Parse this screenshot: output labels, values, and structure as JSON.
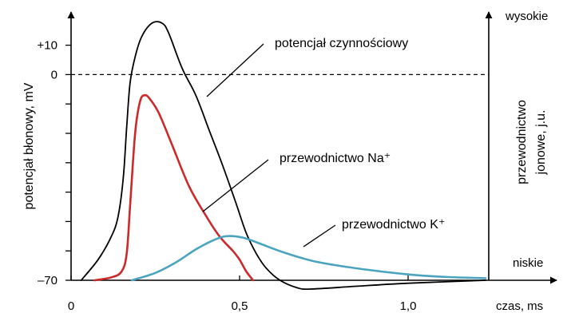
{
  "chart_data": {
    "type": "line",
    "xlabel": "czas, ms",
    "ylabel_left": "potencjał błonowy, mV",
    "ylabel_right": [
      "przewodnictwo",
      "jonowe, j.u."
    ],
    "right_top_label": "wysokie",
    "right_bottom_label": "niskie",
    "xlim": [
      0,
      1.23
    ],
    "ylim": [
      -70,
      18
    ],
    "x_ticks": [
      {
        "value": 0,
        "label": "0"
      },
      {
        "value": 0.5,
        "label": "0,5"
      },
      {
        "value": 1.0,
        "label": "1,0"
      }
    ],
    "y_ticks": [
      {
        "value": 10,
        "label": "+10"
      },
      {
        "value": 0,
        "label": "0"
      },
      {
        "value": -70,
        "label": "–70"
      }
    ],
    "y_minor_ticks": [
      -10,
      -20,
      -30,
      -40,
      -50,
      -60
    ],
    "reference_line": {
      "y": 0,
      "style": "dashed"
    },
    "series": [
      {
        "name": "potencjał czynnościowy",
        "color": "#000000",
        "points": [
          [
            0.03,
            -70
          ],
          [
            0.08,
            -63
          ],
          [
            0.12,
            -55
          ],
          [
            0.14,
            -48
          ],
          [
            0.155,
            -35
          ],
          [
            0.165,
            -18
          ],
          [
            0.175,
            -3
          ],
          [
            0.19,
            6
          ],
          [
            0.21,
            13
          ],
          [
            0.24,
            17.5
          ],
          [
            0.27,
            17.5
          ],
          [
            0.29,
            14
          ],
          [
            0.33,
            2
          ],
          [
            0.37,
            -7
          ],
          [
            0.41,
            -19
          ],
          [
            0.45,
            -31
          ],
          [
            0.49,
            -44
          ],
          [
            0.52,
            -54
          ],
          [
            0.55,
            -61
          ],
          [
            0.58,
            -66
          ],
          [
            0.62,
            -70
          ],
          [
            0.67,
            -72.5
          ],
          [
            0.71,
            -73
          ],
          [
            0.85,
            -72
          ],
          [
            1.0,
            -71
          ],
          [
            1.23,
            -70
          ]
        ]
      },
      {
        "name": "przewodnictwo Na⁺",
        "color": "#cc2a2a",
        "points": [
          [
            0.07,
            -70
          ],
          [
            0.12,
            -69
          ],
          [
            0.15,
            -67
          ],
          [
            0.165,
            -61
          ],
          [
            0.175,
            -45
          ],
          [
            0.19,
            -20
          ],
          [
            0.205,
            -9
          ],
          [
            0.22,
            -7
          ],
          [
            0.235,
            -8.5
          ],
          [
            0.26,
            -13
          ],
          [
            0.3,
            -24
          ],
          [
            0.35,
            -38
          ],
          [
            0.4,
            -48
          ],
          [
            0.44,
            -55
          ],
          [
            0.48,
            -60
          ],
          [
            0.5,
            -63
          ],
          [
            0.52,
            -67
          ],
          [
            0.54,
            -70
          ]
        ]
      },
      {
        "name": "przewodnictwo K⁺",
        "color": "#4aa3bf",
        "points": [
          [
            0.18,
            -70
          ],
          [
            0.25,
            -67.5
          ],
          [
            0.31,
            -64
          ],
          [
            0.37,
            -59.5
          ],
          [
            0.42,
            -56.5
          ],
          [
            0.46,
            -55
          ],
          [
            0.51,
            -55.5
          ],
          [
            0.56,
            -57.5
          ],
          [
            0.63,
            -60.5
          ],
          [
            0.72,
            -63.5
          ],
          [
            0.82,
            -65.5
          ],
          [
            0.92,
            -67
          ],
          [
            1.02,
            -68.2
          ],
          [
            1.12,
            -68.9
          ],
          [
            1.23,
            -69.3
          ]
        ]
      }
    ],
    "annotations": [
      {
        "text": "potencjał czynnościowy",
        "series": 0
      },
      {
        "text": "przewodnictwo Na⁺",
        "series": 1
      },
      {
        "text": "przewodnictwo K⁺",
        "series": 2
      }
    ]
  }
}
